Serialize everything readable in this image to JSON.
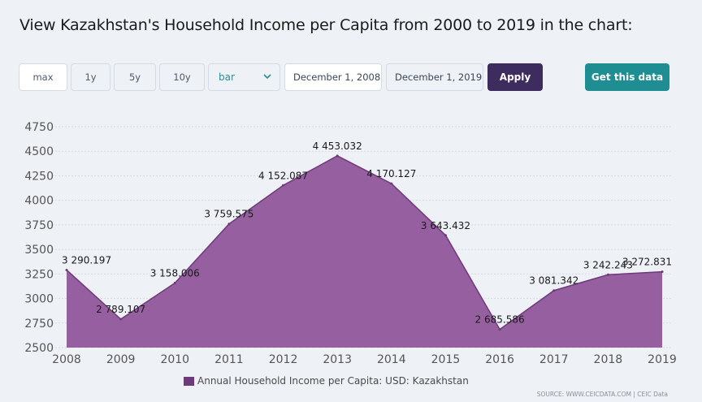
{
  "page": {
    "title": "View Kazakhstan's Household Income per Capita from 2000 to 2019 in the chart:"
  },
  "controls": {
    "range_buttons": [
      "max",
      "1y",
      "5y",
      "10y"
    ],
    "chart_type_selected": "bar",
    "start_date": "December 1, 2008",
    "end_date": "December 1, 2019",
    "apply_label": "Apply",
    "get_data_label": "Get this data",
    "colors": {
      "apply": "#3d2c5e",
      "get_data": "#1e8e93",
      "select_text": "#2a8f93"
    }
  },
  "chart_data": {
    "type": "area",
    "x": [
      "2008",
      "2009",
      "2010",
      "2011",
      "2012",
      "2013",
      "2014",
      "2015",
      "2016",
      "2017",
      "2018",
      "2019"
    ],
    "series": [
      {
        "name": "Annual Household Income per Capita: USD: Kazakhstan",
        "values": [
          3290.197,
          2789.107,
          3158.006,
          3759.575,
          4152.087,
          4453.032,
          4170.127,
          3643.432,
          2685.586,
          3081.342,
          3242.243,
          3272.831
        ],
        "labels": [
          "3 290.197",
          "2 789.107",
          "3 158.006",
          "3 759.575",
          "4 152.087",
          "4 453.032",
          "4 170.127",
          "3 643.432",
          "2 685.586",
          "3 081.342",
          "3 242.243",
          "3 272.831"
        ],
        "color": "#955fa0",
        "line_color": "#6f3a7a"
      }
    ],
    "y_ticks": [
      "4750",
      "4500",
      "4250",
      "4000",
      "3750",
      "3500",
      "3250",
      "3000",
      "2750",
      "2500"
    ],
    "ylim": [
      2500,
      4750
    ],
    "grid": true,
    "legend": "bottom-center"
  },
  "footer": {
    "source": "SOURCE: WWW.CEICDATA.COM | CEIC Data"
  }
}
